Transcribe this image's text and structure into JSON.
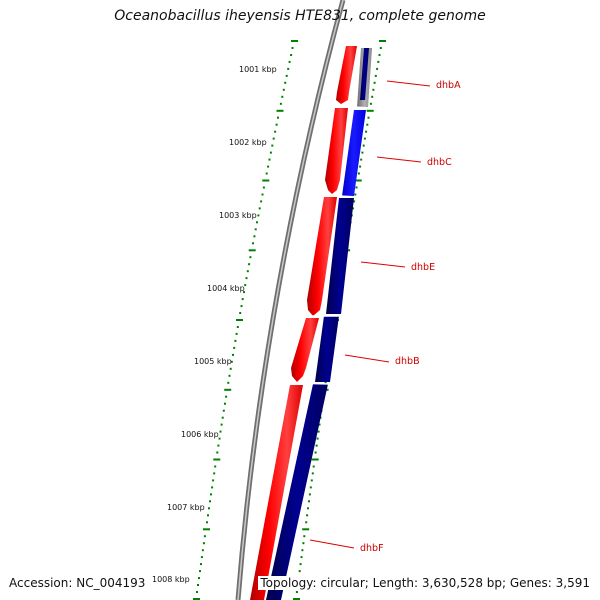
{
  "title": "Oceanobacillus iheyensis HTE831, complete genome",
  "colors": {
    "forward_strand": "#ff0000",
    "reverse_strand_light": "#0000ff",
    "reverse_strand_dark": "#000080",
    "backbone": "#808080",
    "ticks": "#008000",
    "gene_label": "#cc0000"
  },
  "kbp_labels": [
    "1001 kbp",
    "1002 kbp",
    "1003 kbp",
    "1004 kbp",
    "1005 kbp",
    "1006 kbp",
    "1007 kbp",
    "1008 kbp"
  ],
  "genes": [
    {
      "name": "dhbA",
      "strand": "reverse"
    },
    {
      "name": "dhbC",
      "strand": "reverse"
    },
    {
      "name": "dhbE",
      "strand": "reverse"
    },
    {
      "name": "dhbB",
      "strand": "reverse"
    },
    {
      "name": "dhbF",
      "strand": "reverse"
    }
  ],
  "footer": {
    "accession": "Accession: NC_004193",
    "summary": "Topology: circular; Length: 3,630,528 bp; Genes: 3,591"
  }
}
